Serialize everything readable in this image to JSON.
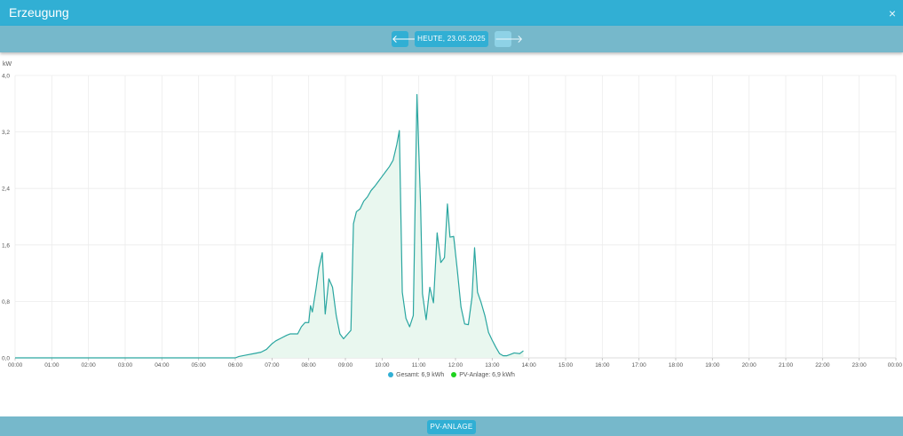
{
  "dialog": {
    "title": "Erzeugung",
    "close_glyph": "×"
  },
  "navigation": {
    "prev_glyph": "🡐",
    "next_glyph": "🡒",
    "date_label": "HEUTE, 23.05.2025",
    "next_disabled": true
  },
  "footer": {
    "button_label": "PV-ANLAGE"
  },
  "colors": {
    "header": "#31afd4",
    "bar": "#76b8cb",
    "line": "#2aa6a0",
    "fill": "#e9f7ef",
    "legend_gesamt": "#31afd4",
    "legend_pv": "#1ed21e"
  },
  "chart_data": {
    "type": "area",
    "ylabel": "kW",
    "ylim": [
      0,
      4.0
    ],
    "yticks": [
      "0,0",
      "0,8",
      "1,6",
      "2,4",
      "3,2",
      "4,0"
    ],
    "xlim": [
      0,
      24
    ],
    "xticks": [
      "00:00",
      "01:00",
      "02:00",
      "03:00",
      "04:00",
      "05:00",
      "06:00",
      "07:00",
      "08:00",
      "09:00",
      "10:00",
      "11:00",
      "12:00",
      "13:00",
      "14:00",
      "15:00",
      "16:00",
      "17:00",
      "18:00",
      "19:00",
      "20:00",
      "21:00",
      "22:00",
      "23:00",
      "00:00"
    ],
    "grid": true,
    "legend": [
      {
        "label": "Gesamt: 6,9 kWh",
        "color": "#31afd4"
      },
      {
        "label": "PV-Anlage: 6,9 kWh",
        "color": "#1ed21e"
      }
    ],
    "series": [
      {
        "points": [
          [
            0,
            0
          ],
          [
            1,
            0
          ],
          [
            2,
            0
          ],
          [
            3,
            0
          ],
          [
            4,
            0
          ],
          [
            5,
            0
          ],
          [
            6,
            0
          ],
          [
            6.1,
            0.02
          ],
          [
            6.3,
            0.04
          ],
          [
            6.5,
            0.06
          ],
          [
            6.7,
            0.08
          ],
          [
            6.85,
            0.12
          ],
          [
            7.0,
            0.2
          ],
          [
            7.1,
            0.24
          ],
          [
            7.25,
            0.28
          ],
          [
            7.4,
            0.32
          ],
          [
            7.5,
            0.34
          ],
          [
            7.7,
            0.34
          ],
          [
            7.8,
            0.44
          ],
          [
            7.9,
            0.5
          ],
          [
            8.0,
            0.5
          ],
          [
            8.05,
            0.74
          ],
          [
            8.1,
            0.65
          ],
          [
            8.2,
            0.98
          ],
          [
            8.28,
            1.28
          ],
          [
            8.37,
            1.49
          ],
          [
            8.45,
            0.62
          ],
          [
            8.55,
            1.12
          ],
          [
            8.65,
            1.0
          ],
          [
            8.75,
            0.6
          ],
          [
            8.85,
            0.34
          ],
          [
            8.95,
            0.27
          ],
          [
            9.05,
            0.33
          ],
          [
            9.15,
            0.39
          ],
          [
            9.22,
            1.9
          ],
          [
            9.3,
            2.07
          ],
          [
            9.4,
            2.11
          ],
          [
            9.5,
            2.22
          ],
          [
            9.6,
            2.28
          ],
          [
            9.7,
            2.37
          ],
          [
            9.8,
            2.43
          ],
          [
            9.9,
            2.5
          ],
          [
            10.0,
            2.57
          ],
          [
            10.1,
            2.64
          ],
          [
            10.2,
            2.71
          ],
          [
            10.3,
            2.8
          ],
          [
            10.4,
            3.02
          ],
          [
            10.47,
            3.22
          ],
          [
            10.55,
            0.93
          ],
          [
            10.65,
            0.56
          ],
          [
            10.75,
            0.44
          ],
          [
            10.85,
            0.6
          ],
          [
            10.95,
            3.73
          ],
          [
            11.05,
            2.15
          ],
          [
            11.1,
            0.91
          ],
          [
            11.2,
            0.54
          ],
          [
            11.3,
            1.0
          ],
          [
            11.4,
            0.78
          ],
          [
            11.5,
            1.77
          ],
          [
            11.6,
            1.35
          ],
          [
            11.7,
            1.42
          ],
          [
            11.78,
            2.18
          ],
          [
            11.85,
            1.71
          ],
          [
            11.95,
            1.72
          ],
          [
            12.05,
            1.24
          ],
          [
            12.15,
            0.72
          ],
          [
            12.25,
            0.48
          ],
          [
            12.35,
            0.47
          ],
          [
            12.45,
            0.86
          ],
          [
            12.52,
            1.56
          ],
          [
            12.6,
            0.93
          ],
          [
            12.7,
            0.78
          ],
          [
            12.8,
            0.6
          ],
          [
            12.9,
            0.36
          ],
          [
            13.0,
            0.25
          ],
          [
            13.1,
            0.15
          ],
          [
            13.2,
            0.06
          ],
          [
            13.3,
            0.03
          ],
          [
            13.4,
            0.03
          ],
          [
            13.5,
            0.05
          ],
          [
            13.6,
            0.07
          ],
          [
            13.75,
            0.06
          ],
          [
            13.85,
            0.1
          ]
        ]
      }
    ]
  }
}
